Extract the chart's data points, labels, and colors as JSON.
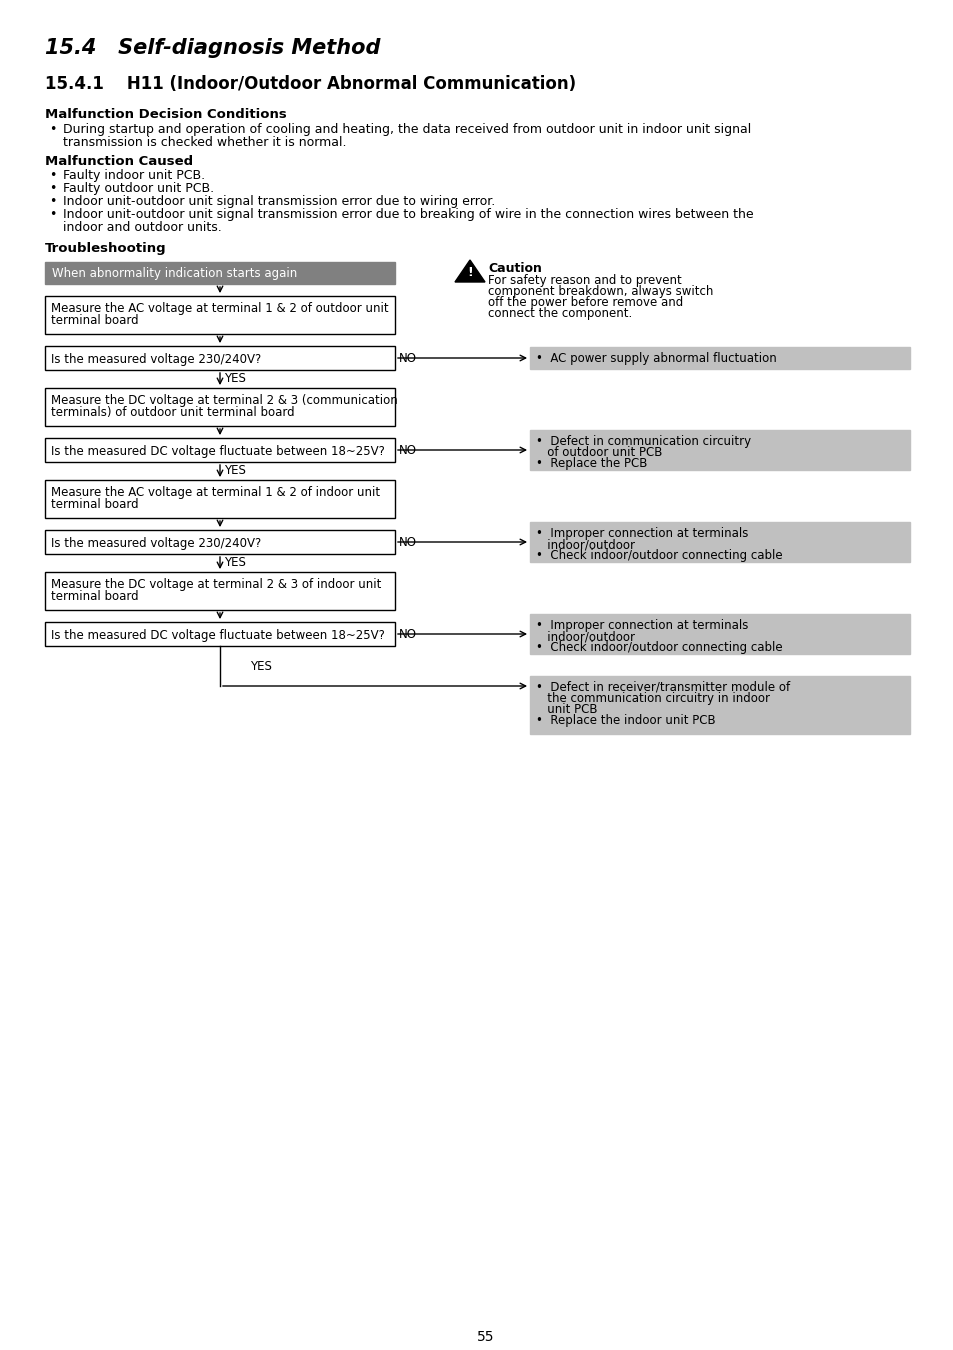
{
  "title1": "15.4   Self-diagnosis Method",
  "title2": "15.4.1    H11 (Indoor/Outdoor Abnormal Communication)",
  "section1_header": "Malfunction Decision Conditions",
  "section1_bullet1": "During startup and operation of cooling and heating, the data received from outdoor unit in indoor unit signal",
  "section1_bullet2": "transmission is checked whether it is normal.",
  "section2_header": "Malfunction Caused",
  "section2_bullets": [
    "Faulty indoor unit PCB.",
    "Faulty outdoor unit PCB.",
    "Indoor unit-outdoor unit signal transmission error due to wiring error.",
    "Indoor unit-outdoor unit signal transmission error due to breaking of wire in the connection wires between the"
  ],
  "section2_bullet4_cont": "indoor and outdoor units.",
  "section3_header": "Troubleshooting",
  "flow_start_box": "When abnormality indication starts again",
  "flow_boxes_left": [
    "Measure the AC voltage at terminal 1 & 2 of outdoor unit\nterminal board",
    "Is the measured voltage 230/240V?",
    "Measure the DC voltage at terminal 2 & 3 (communication\nterminals) of outdoor unit terminal board",
    "Is the measured DC voltage fluctuate between 18~25V?",
    "Measure the AC voltage at terminal 1 & 2 of indoor unit\nterminal board",
    "Is the measured voltage 230/240V?",
    "Measure the DC voltage at terminal 2 & 3 of indoor unit\nterminal board",
    "Is the measured DC voltage fluctuate between 18~25V?"
  ],
  "flow_right_box0": "•  AC power supply abnormal fluctuation",
  "flow_right_box1_l1": "•  Defect in communication circuitry",
  "flow_right_box1_l2": "   of outdoor unit PCB",
  "flow_right_box1_l3": "•  Replace the PCB",
  "flow_right_box2_l1": "•  Improper connection at terminals",
  "flow_right_box2_l2": "   indoor/outdoor",
  "flow_right_box2_l3": "•  Check indoor/outdoor connecting cable",
  "flow_right_box3_l1": "•  Improper connection at terminals",
  "flow_right_box3_l2": "   indoor/outdoor",
  "flow_right_box3_l3": "•  Check indoor/outdoor connecting cable",
  "flow_right_box4_l1": "•  Defect in receiver/transmitter module of",
  "flow_right_box4_l2": "   the communication circuitry in indoor",
  "flow_right_box4_l3": "   unit PCB",
  "flow_right_box4_l4": "•  Replace the indoor unit PCB",
  "caution_label": "Caution",
  "caution_line1": "For safety reason and to prevent",
  "caution_line2": "component breakdown, always switch",
  "caution_line3": "off the power before remove and",
  "caution_line4": "connect the component.",
  "page_number": "55",
  "bg_color": "#ffffff",
  "gray_dark": "#808080",
  "gray_box": "#c0c0c0",
  "black": "#000000",
  "white": "#ffffff"
}
